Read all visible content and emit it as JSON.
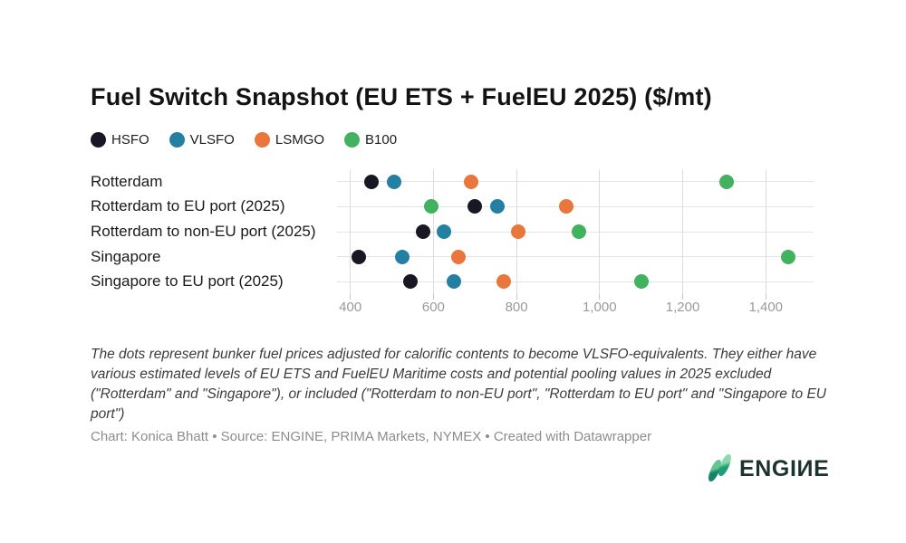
{
  "title": "Fuel Switch Snapshot (EU ETS + FuelEU 2025) ($/mt)",
  "legend": [
    {
      "label": "HSFO",
      "color": "#181824"
    },
    {
      "label": "VLSFO",
      "color": "#2380a2"
    },
    {
      "label": "LSMGO",
      "color": "#e8763d"
    },
    {
      "label": "B100",
      "color": "#42b25e"
    }
  ],
  "chart_data": {
    "type": "scatter",
    "subtype": "dot-plot",
    "categories": [
      "Rotterdam",
      "Rotterdam to EU port (2025)",
      "Rotterdam to non-EU port (2025)",
      "Singapore",
      "Singapore to EU port (2025)"
    ],
    "series": [
      {
        "name": "HSFO",
        "color": "#181824",
        "values": [
          450,
          700,
          575,
          420,
          545
        ]
      },
      {
        "name": "VLSFO",
        "color": "#2380a2",
        "values": [
          505,
          755,
          625,
          525,
          650
        ]
      },
      {
        "name": "LSMGO",
        "color": "#e8763d",
        "values": [
          690,
          920,
          805,
          660,
          770
        ]
      },
      {
        "name": "B100",
        "color": "#42b25e",
        "values": [
          1305,
          595,
          950,
          1455,
          1100
        ]
      }
    ],
    "x_ticks": [
      400,
      600,
      800,
      1000,
      1200,
      1400
    ],
    "x_tick_labels": [
      "400",
      "600",
      "800",
      "1,000",
      "1,200",
      "1,400"
    ],
    "xlim": [
      368,
      1515
    ],
    "grid": true,
    "legend_position": "top",
    "title": "Fuel Switch Snapshot (EU ETS + FuelEU 2025) ($/mt)",
    "xlabel": "",
    "ylabel": ""
  },
  "footnote": "The dots represent bunker fuel prices adjusted for calorific contents to become VLSFO-equivalents. They either have various estimated levels of EU ETS and FuelEU Maritime costs and potential pooling values in 2025 excluded (\"Rotterdam\" and \"Singapore\"), or included (\"Rotterdam to non-EU port\", \"Rotterdam to EU port\" and \"Singapore to EU port\")",
  "credits": "Chart: Konica Bhatt • Source: ENGINE, PRIMA Markets, NYMEX • Created with Datawrapper",
  "logo": {
    "text": "ENGIИE"
  }
}
